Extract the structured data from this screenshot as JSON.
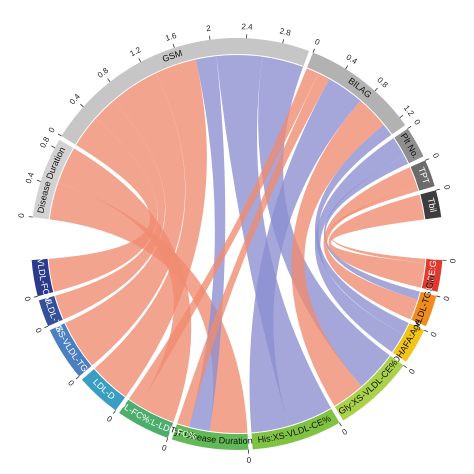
{
  "chart_data": {
    "type": "chord",
    "groups": [
      {
        "sectors": [
          {
            "name": "Disease Duration",
            "value": 0.9,
            "color": "#d2d2d2",
            "ticks": [
              0,
              0.4,
              0.8
            ]
          },
          {
            "name": "GSM",
            "value": 3.1,
            "color": "#c6c6c6",
            "ticks": [
              0,
              0.4,
              0.8,
              1.2,
              1.6,
              2,
              2.4,
              2.8
            ]
          },
          {
            "name": "BILAG",
            "value": 1.3,
            "color": "#b2b2b2",
            "ticks": [
              0,
              0.4,
              0.8,
              1.2
            ]
          },
          {
            "name": "Plt No.",
            "value": 0.35,
            "color": "#8e8e8e",
            "ticks": [
              0
            ]
          },
          {
            "name": "TPT",
            "value": 0.3,
            "color": "#6b6b6b",
            "ticks": [
              0
            ]
          },
          {
            "name": "Tbil",
            "value": 0.3,
            "color": "#3d3d3d",
            "ticks": [
              0
            ]
          }
        ]
      },
      {
        "sectors": [
          {
            "name": "XL-CE:Glu",
            "value": 0.35,
            "color": "#e03a2e",
            "ticks": [
              0
            ]
          },
          {
            "name": "XL-VLDL-TG:Glu",
            "value": 0.35,
            "color": "#f08c1e",
            "ticks": [
              0
            ]
          },
          {
            "name": "DHAFA:Age",
            "value": 0.4,
            "color": "#f2c318",
            "ticks": [
              0
            ]
          },
          {
            "name": "Gly:XS-VLDL-CE%",
            "value": 0.9,
            "color": "#a9d24a",
            "ticks": [
              0
            ]
          },
          {
            "name": "His:XS-VLDL-CE%",
            "value": 1.0,
            "color": "#80c343",
            "ticks": [
              0
            ]
          },
          {
            "name": "Tyr:Disease Duration",
            "value": 0.85,
            "color": "#62b957",
            "ticks": [
              0
            ]
          },
          {
            "name": "M-VLDL-FC%:L-LDL-FC%",
            "value": 0.6,
            "color": "#4cae6c",
            "ticks": [
              0
            ]
          },
          {
            "name": "LDL-D",
            "value": 0.5,
            "color": "#3a9ec2",
            "ticks": [
              0
            ]
          },
          {
            "name": "XS-VLDL-TG",
            "value": 0.6,
            "color": "#4a7fc1",
            "ticks": [
              0
            ]
          },
          {
            "name": "S-VLDL-TG",
            "value": 0.3,
            "color": "#34509a",
            "ticks": [
              0
            ]
          },
          {
            "name": "L-VLDL-FC%",
            "value": 0.4,
            "color": "#2b3a8c",
            "ticks": [
              0
            ]
          }
        ]
      }
    ],
    "links": [
      {
        "source": "Disease Duration",
        "target": "Tyr:Disease Duration",
        "value": 0.45,
        "color": "#f08a70"
      },
      {
        "source": "Disease Duration",
        "target": "M-VLDL-FC%:L-LDL-FC%",
        "value": 0.45,
        "color": "#f08a70"
      },
      {
        "source": "GSM",
        "target": "L-VLDL-FC%",
        "value": 0.4,
        "color": "#f08a70"
      },
      {
        "source": "GSM",
        "target": "S-VLDL-TG",
        "value": 0.3,
        "color": "#f08a70"
      },
      {
        "source": "GSM",
        "target": "XS-VLDL-TG",
        "value": 0.6,
        "color": "#f08a70"
      },
      {
        "source": "GSM",
        "target": "LDL-D",
        "value": 0.5,
        "color": "#f08a70"
      },
      {
        "source": "GSM",
        "target": "Tyr:Disease Duration",
        "value": 0.25,
        "color": "#8c8ecf"
      },
      {
        "source": "GSM",
        "target": "His:XS-VLDL-CE%",
        "value": 0.55,
        "color": "#8c8ecf"
      },
      {
        "source": "GSM",
        "target": "Gly:XS-VLDL-CE%",
        "value": 0.5,
        "color": "#8c8ecf"
      },
      {
        "source": "BILAG",
        "target": "M-VLDL-FC%:L-LDL-FC%",
        "value": 0.15,
        "color": "#f08a70"
      },
      {
        "source": "BILAG",
        "target": "Tyr:Disease Duration",
        "value": 0.15,
        "color": "#f08a70"
      },
      {
        "source": "BILAG",
        "target": "His:XS-VLDL-CE%",
        "value": 0.45,
        "color": "#8c8ecf"
      },
      {
        "source": "BILAG",
        "target": "Gly:XS-VLDL-CE%",
        "value": 0.4,
        "color": "#f08a70"
      },
      {
        "source": "BILAG",
        "target": "DHAFA:Age",
        "value": 0.15,
        "color": "#8c8ecf"
      },
      {
        "source": "Plt No.",
        "target": "DHAFA:Age",
        "value": 0.25,
        "color": "#8c8ecf"
      },
      {
        "source": "Plt No.",
        "target": "XL-VLDL-TG:Glu",
        "value": 0.1,
        "color": "#8c8ecf"
      },
      {
        "source": "TPT",
        "target": "XL-VLDL-TG:Glu",
        "value": 0.25,
        "color": "#f08a70"
      },
      {
        "source": "TPT",
        "target": "XL-CE:Glu",
        "value": 0.05,
        "color": "#f08a70"
      },
      {
        "source": "Tbil",
        "target": "XL-CE:Glu",
        "value": 0.3,
        "color": "#f08a70"
      }
    ]
  }
}
